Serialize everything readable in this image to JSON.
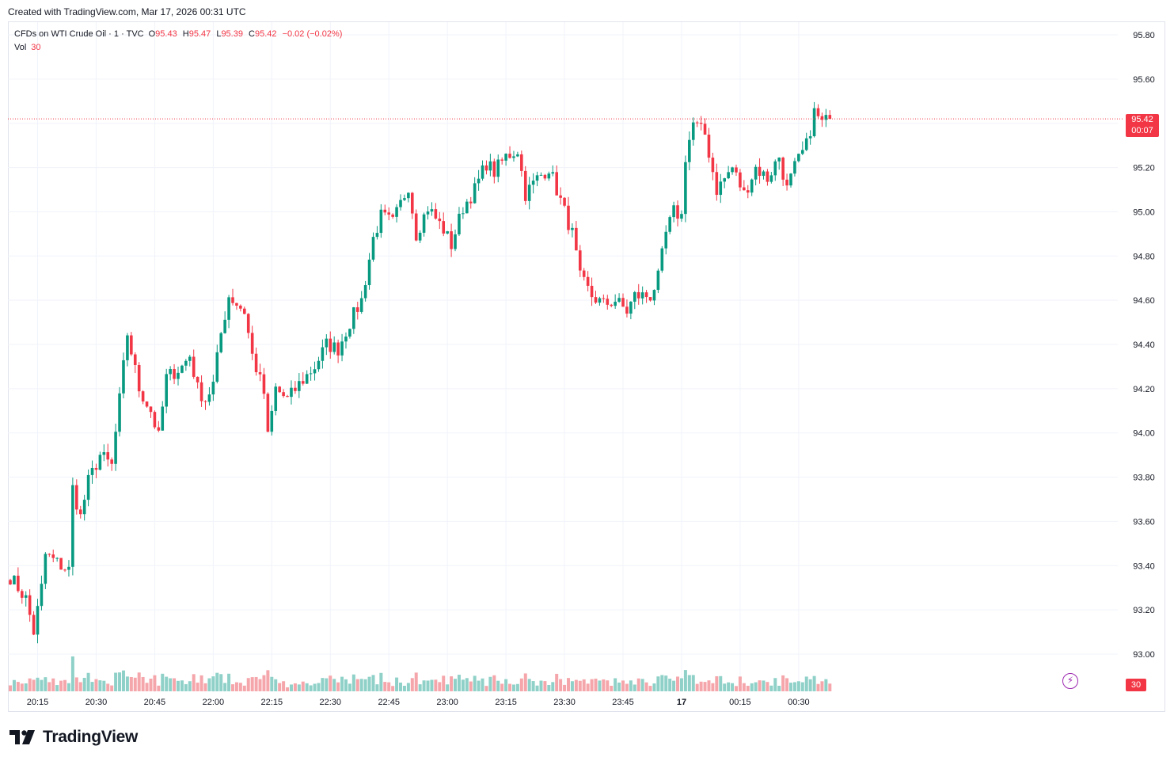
{
  "header": {
    "created_text": "Created with TradingView.com, Mar 17, 2026 00:31 UTC"
  },
  "legend": {
    "symbol": "CFDs on WTI Crude Oil · 1 · TVC",
    "o_label": "O",
    "o_value": "95.43",
    "h_label": "H",
    "h_value": "95.47",
    "l_label": "L",
    "l_value": "95.39",
    "c_label": "C",
    "c_value": "95.42",
    "change": "−0.02 (−0.02%)",
    "vol_label": "Vol",
    "vol_value": "30"
  },
  "price_badge": {
    "price": "95.42",
    "countdown": "00:07"
  },
  "volume_badge": "30",
  "brand": {
    "name": "TradingView"
  },
  "colors": {
    "up": "#089981",
    "down": "#f23645",
    "vol_up": "#8fd1c8",
    "vol_down": "#f5a6ab",
    "grid": "#f0f3fa"
  },
  "chart_data": {
    "type": "candlestick",
    "title": "CFDs on WTI Crude Oil · 1 · TVC",
    "y_range": [
      92.85,
      95.9
    ],
    "y_ticks": [
      "95.80",
      "95.60",
      "95.40",
      "95.20",
      "95.00",
      "94.80",
      "94.60",
      "94.40",
      "94.20",
      "94.00",
      "93.80",
      "93.60",
      "93.40",
      "93.20",
      "93.00"
    ],
    "x_ticks": [
      {
        "label": "20:15",
        "index": 7
      },
      {
        "label": "20:30",
        "index": 22
      },
      {
        "label": "20:45",
        "index": 37
      },
      {
        "label": "22:00",
        "index": 52
      },
      {
        "label": "22:15",
        "index": 67
      },
      {
        "label": "22:30",
        "index": 82
      },
      {
        "label": "22:45",
        "index": 97
      },
      {
        "label": "23:00",
        "index": 112
      },
      {
        "label": "23:15",
        "index": 127
      },
      {
        "label": "23:30",
        "index": 142
      },
      {
        "label": "23:45",
        "index": 157
      },
      {
        "label": "17",
        "index": 172,
        "bold": true
      },
      {
        "label": "00:15",
        "index": 187
      },
      {
        "label": "00:30",
        "index": 202
      }
    ],
    "last_price": 95.42,
    "anchors": [
      [
        0,
        93.35
      ],
      [
        4,
        93.25
      ],
      [
        6,
        93.1
      ],
      [
        8,
        93.3
      ],
      [
        9,
        93.45
      ],
      [
        13,
        93.4
      ],
      [
        15,
        93.38
      ],
      [
        16,
        93.75
      ],
      [
        18,
        93.62
      ],
      [
        20,
        93.78
      ],
      [
        23,
        93.9
      ],
      [
        26,
        93.85
      ],
      [
        28,
        94.15
      ],
      [
        30,
        94.45
      ],
      [
        33,
        94.2
      ],
      [
        36,
        94.1
      ],
      [
        38,
        93.98
      ],
      [
        40,
        94.25
      ],
      [
        44,
        94.3
      ],
      [
        46,
        94.35
      ],
      [
        48,
        94.2
      ],
      [
        50,
        94.15
      ],
      [
        52,
        94.22
      ],
      [
        54,
        94.45
      ],
      [
        56,
        94.62
      ],
      [
        60,
        94.55
      ],
      [
        62,
        94.35
      ],
      [
        65,
        94.18
      ],
      [
        66,
        93.98
      ],
      [
        68,
        94.2
      ],
      [
        71,
        94.15
      ],
      [
        74,
        94.22
      ],
      [
        78,
        94.3
      ],
      [
        81,
        94.4
      ],
      [
        84,
        94.38
      ],
      [
        87,
        94.5
      ],
      [
        90,
        94.6
      ],
      [
        93,
        94.88
      ],
      [
        95,
        94.98
      ],
      [
        98,
        94.95
      ],
      [
        102,
        95.12
      ],
      [
        104,
        94.9
      ],
      [
        107,
        95.02
      ],
      [
        111,
        94.92
      ],
      [
        113,
        94.85
      ],
      [
        116,
        95.02
      ],
      [
        119,
        95.1
      ],
      [
        122,
        95.22
      ],
      [
        124,
        95.18
      ],
      [
        127,
        95.25
      ],
      [
        130,
        95.28
      ],
      [
        132,
        95.08
      ],
      [
        135,
        95.15
      ],
      [
        138,
        95.2
      ],
      [
        141,
        95.05
      ],
      [
        144,
        94.9
      ],
      [
        146,
        94.7
      ],
      [
        149,
        94.62
      ],
      [
        152,
        94.58
      ],
      [
        155,
        94.6
      ],
      [
        158,
        94.55
      ],
      [
        160,
        94.62
      ],
      [
        164,
        94.62
      ],
      [
        166,
        94.7
      ],
      [
        168,
        94.9
      ],
      [
        170,
        95.0
      ],
      [
        172,
        94.98
      ],
      [
        173,
        95.25
      ],
      [
        175,
        95.4
      ],
      [
        178,
        95.35
      ],
      [
        181,
        95.1
      ],
      [
        185,
        95.2
      ],
      [
        188,
        95.08
      ],
      [
        191,
        95.2
      ],
      [
        194,
        95.15
      ],
      [
        197,
        95.25
      ],
      [
        199,
        95.1
      ],
      [
        201,
        95.2
      ],
      [
        204,
        95.3
      ],
      [
        206,
        95.45
      ],
      [
        208,
        95.4
      ],
      [
        210,
        95.42
      ]
    ],
    "volume_range": [
      0,
      160
    ],
    "note": "Close path of 1-minute candles (bar index, price); open/high/low and volume of each bar derived procedurally around this path."
  }
}
